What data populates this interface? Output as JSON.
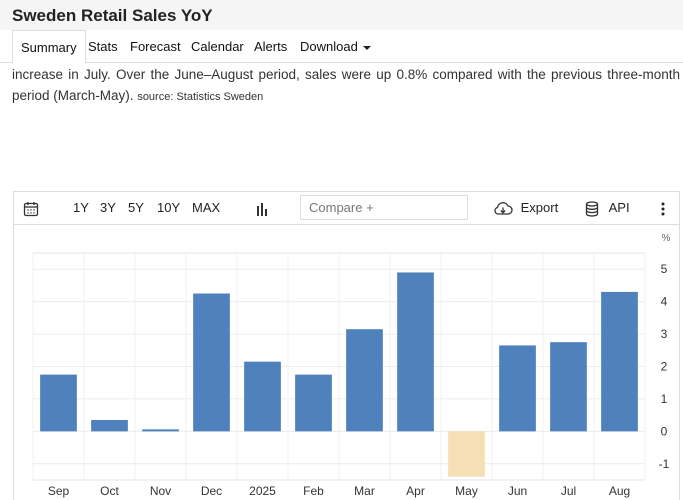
{
  "header": {
    "title": "Sweden Retail Sales YoY"
  },
  "tabs": [
    {
      "label": "Summary"
    },
    {
      "label": "Stats"
    },
    {
      "label": "Forecast"
    },
    {
      "label": "Calendar"
    },
    {
      "label": "Alerts"
    },
    {
      "label": "Download"
    }
  ],
  "description": {
    "line1": "increase in July. Over the June–August period, sales were up 0.8% compared with the previous three-month period",
    "line2": "(March-May).",
    "source": "source: Statistics Sweden"
  },
  "toolbar": {
    "ranges": [
      "1Y",
      "3Y",
      "5Y",
      "10Y",
      "MAX"
    ],
    "compare_placeholder": "Compare +",
    "export_label": "Export",
    "api_label": "API"
  },
  "colors": {
    "positive": "#4f81bd",
    "negative": "#f5dfb5"
  },
  "chart_data": {
    "type": "bar",
    "categories": [
      "Sep",
      "Oct",
      "Nov",
      "Dec",
      "2025",
      "Feb",
      "Mar",
      "Apr",
      "May",
      "Jun",
      "Jul",
      "Aug"
    ],
    "values": [
      1.75,
      0.35,
      0.05,
      4.25,
      2.15,
      1.75,
      3.15,
      4.9,
      -1.4,
      2.65,
      2.75,
      4.3
    ],
    "unit": "%",
    "ylim": [
      -1.5,
      5.5
    ],
    "yticks": [
      -1,
      0,
      1,
      2,
      3,
      4,
      5
    ],
    "grid": true
  }
}
